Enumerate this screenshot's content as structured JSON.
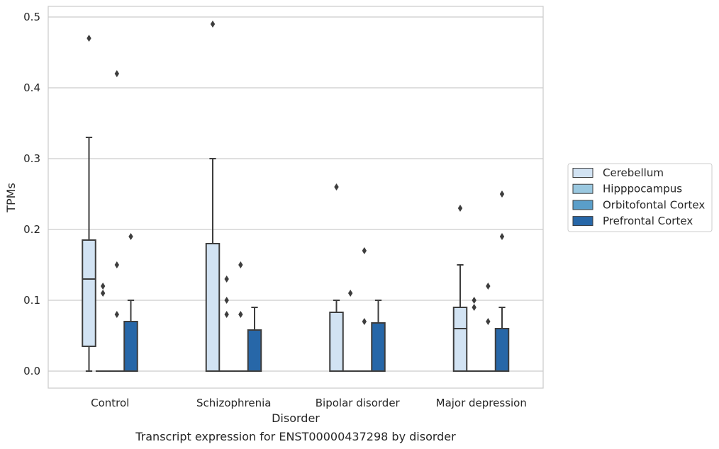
{
  "chart_data": {
    "type": "box",
    "caption": "Transcript expression for ENST00000437298 by disorder",
    "xlabel": "Disorder",
    "ylabel": "TPMs",
    "ylim": [
      -0.024,
      0.515
    ],
    "yticks": [
      0.0,
      0.1,
      0.2,
      0.3,
      0.4,
      0.5
    ],
    "ytick_labels": [
      "0.0",
      "0.1",
      "0.2",
      "0.3",
      "0.4",
      "0.5"
    ],
    "grid": true,
    "legend_position": "right",
    "categories": [
      "Control",
      "Schizophrenia",
      "Bipolar disorder",
      "Major depression"
    ],
    "series": [
      {
        "name": "Cerebellum",
        "color": "#d2e3f3",
        "boxes": [
          {
            "whisker_low": 0.0,
            "q1": 0.035,
            "median": 0.13,
            "q3": 0.185,
            "whisker_high": 0.33,
            "outliers": [
              0.47
            ]
          },
          {
            "whisker_low": 0.0,
            "q1": 0.0,
            "median": 0.0,
            "q3": 0.18,
            "whisker_high": 0.3,
            "outliers": [
              0.49
            ]
          },
          {
            "whisker_low": 0.0,
            "q1": 0.0,
            "median": 0.0,
            "q3": 0.083,
            "whisker_high": 0.1,
            "outliers": [
              0.26
            ]
          },
          {
            "whisker_low": 0.0,
            "q1": 0.0,
            "median": 0.06,
            "q3": 0.09,
            "whisker_high": 0.15,
            "outliers": [
              0.23
            ]
          }
        ]
      },
      {
        "name": "Hipppocampus",
        "color": "#9ac8e0",
        "boxes": [
          {
            "whisker_low": 0.0,
            "q1": 0.0,
            "median": 0.0,
            "q3": 0.0,
            "whisker_high": 0.0,
            "outliers": [
              0.11,
              0.12
            ]
          },
          {
            "whisker_low": 0.0,
            "q1": 0.0,
            "median": 0.0,
            "q3": 0.0,
            "whisker_high": 0.0,
            "outliers": [
              0.08,
              0.1,
              0.13
            ]
          },
          {
            "whisker_low": 0.0,
            "q1": 0.0,
            "median": 0.0,
            "q3": 0.0,
            "whisker_high": 0.0,
            "outliers": [
              0.11
            ]
          },
          {
            "whisker_low": 0.0,
            "q1": 0.0,
            "median": 0.0,
            "q3": 0.0,
            "whisker_high": 0.0,
            "outliers": [
              0.09,
              0.1
            ]
          }
        ]
      },
      {
        "name": "Orbitofontal Cortex",
        "color": "#5a9ec9",
        "boxes": [
          {
            "whisker_low": 0.0,
            "q1": 0.0,
            "median": 0.0,
            "q3": 0.0,
            "whisker_high": 0.0,
            "outliers": [
              0.08,
              0.15,
              0.42
            ]
          },
          {
            "whisker_low": 0.0,
            "q1": 0.0,
            "median": 0.0,
            "q3": 0.0,
            "whisker_high": 0.0,
            "outliers": [
              0.08,
              0.15
            ]
          },
          {
            "whisker_low": 0.0,
            "q1": 0.0,
            "median": 0.0,
            "q3": 0.0,
            "whisker_high": 0.0,
            "outliers": [
              0.07,
              0.17
            ]
          },
          {
            "whisker_low": 0.0,
            "q1": 0.0,
            "median": 0.0,
            "q3": 0.0,
            "whisker_high": 0.0,
            "outliers": [
              0.07,
              0.12
            ]
          }
        ]
      },
      {
        "name": "Prefrontal Cortex",
        "color": "#2767a8",
        "boxes": [
          {
            "whisker_low": 0.0,
            "q1": 0.0,
            "median": 0.0,
            "q3": 0.07,
            "whisker_high": 0.1,
            "outliers": [
              0.19
            ]
          },
          {
            "whisker_low": 0.0,
            "q1": 0.0,
            "median": 0.0,
            "q3": 0.058,
            "whisker_high": 0.09,
            "outliers": []
          },
          {
            "whisker_low": 0.0,
            "q1": 0.0,
            "median": 0.0,
            "q3": 0.068,
            "whisker_high": 0.1,
            "outliers": []
          },
          {
            "whisker_low": 0.0,
            "q1": 0.0,
            "median": 0.0,
            "q3": 0.06,
            "whisker_high": 0.09,
            "outliers": [
              0.19,
              0.25
            ]
          }
        ]
      }
    ]
  }
}
